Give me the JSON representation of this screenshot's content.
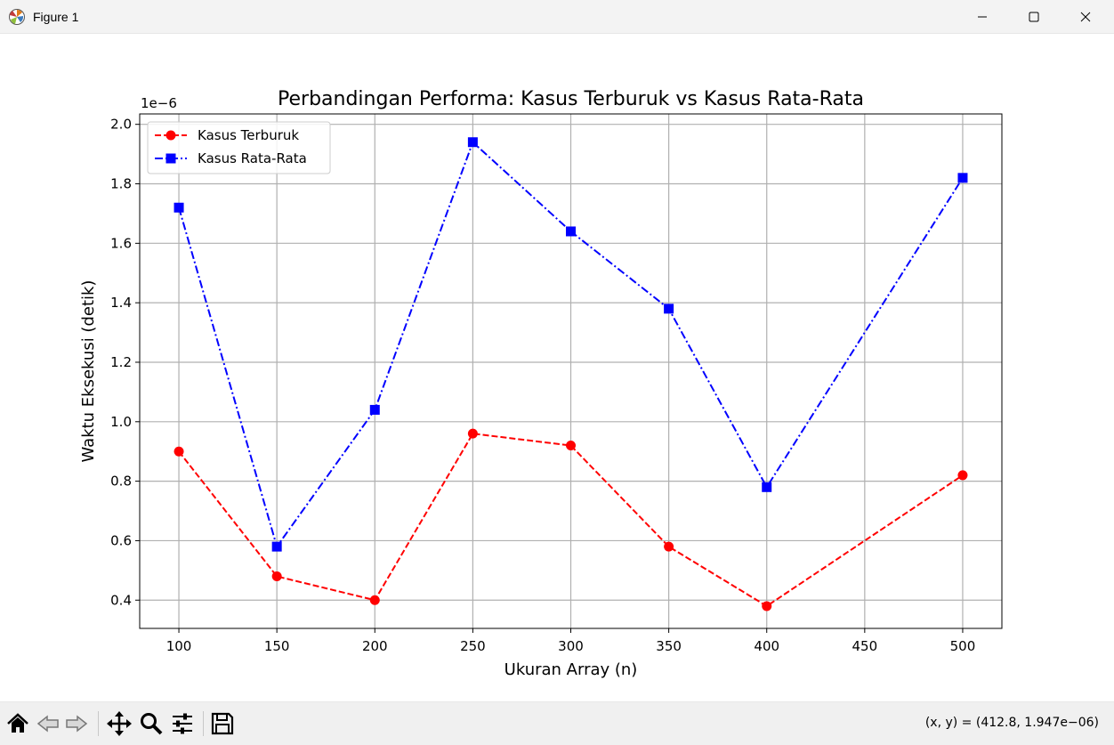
{
  "window": {
    "title": "Figure 1"
  },
  "toolbar": {
    "tools": [
      "home-icon",
      "back-icon",
      "forward-icon",
      "pan-icon",
      "zoom-icon",
      "configure-subplots-icon",
      "save-icon"
    ],
    "coords_readout": "(x, y) = (412.8, 1.947e−06)"
  },
  "colors": {
    "series_worst": "#ff0000",
    "series_avg": "#0000ff",
    "grid": "#b0b0b0"
  },
  "chart_data": {
    "type": "line",
    "title": "Perbandingan Performa: Kasus Terburuk vs Kasus Rata-Rata",
    "xlabel": "Ukuran Array (n)",
    "ylabel": "Waktu Eksekusi (detik)",
    "y_offset_label": "1e−6",
    "x": [
      100,
      150,
      200,
      250,
      300,
      350,
      400,
      500
    ],
    "xlim": [
      80,
      520
    ],
    "ylim": [
      0.305,
      2.035
    ],
    "xticks": [
      100,
      150,
      200,
      250,
      300,
      350,
      400,
      450,
      500
    ],
    "yticks": [
      0.4,
      0.6,
      0.8,
      1.0,
      1.2,
      1.4,
      1.6,
      1.8,
      2.0
    ],
    "ytick_labels": [
      "0.4",
      "0.6",
      "0.8",
      "1.0",
      "1.2",
      "1.4",
      "1.6",
      "1.8",
      "2.0"
    ],
    "grid": true,
    "legend_position": "top-left",
    "series": [
      {
        "name": "Kasus Terburuk",
        "values": [
          0.9,
          0.48,
          0.4,
          0.96,
          0.92,
          0.58,
          0.38,
          0.82
        ],
        "color": "#ff0000",
        "line_style": "dashed",
        "marker": "circle"
      },
      {
        "name": "Kasus Rata-Rata",
        "values": [
          1.72,
          0.58,
          1.04,
          1.94,
          1.64,
          1.38,
          0.78,
          1.82
        ],
        "color": "#0000ff",
        "line_style": "dash-dot",
        "marker": "square"
      }
    ]
  }
}
